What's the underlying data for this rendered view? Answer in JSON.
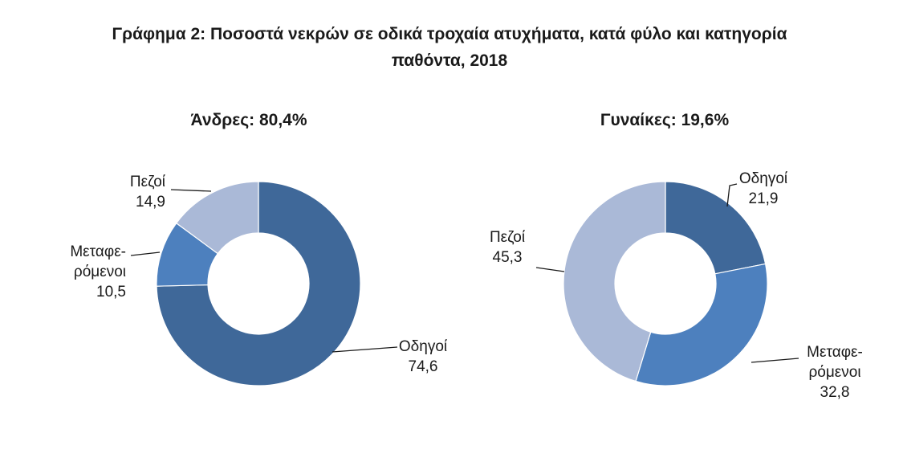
{
  "title": {
    "line1": "Γράφημα 2: Ποσοστά νεκρών σε οδικά τροχαία ατυχήματα, κατά φύλο και κατηγορία",
    "line2": "παθόντα, 2018"
  },
  "chart_data": [
    {
      "type": "donut",
      "title": "Άνδρες: 80,4%",
      "categories": [
        "Οδηγοί",
        "Μεταφερόμενοι",
        "Πεζοί"
      ],
      "values": [
        74.6,
        10.5,
        14.9
      ],
      "start": "top, clockwise",
      "labels": [
        {
          "lines": [
            "Οδηγοί",
            "74,6"
          ],
          "align": "middle"
        },
        {
          "lines": [
            "Μεταφε-",
            "ρόμενοι",
            "10,5"
          ],
          "align": "end"
        },
        {
          "lines": [
            "Πεζοί",
            "14,9"
          ],
          "align": "end"
        }
      ]
    },
    {
      "type": "donut",
      "title": "Γυναίκες: 19,6%",
      "categories": [
        "Οδηγοί",
        "Μεταφερόμενοι",
        "Πεζοί"
      ],
      "values": [
        21.9,
        32.8,
        45.3
      ],
      "start": "top, clockwise",
      "labels": [
        {
          "lines": [
            "Οδηγοί",
            "21,9"
          ],
          "align": "middle"
        },
        {
          "lines": [
            "Μεταφε-",
            "ρόμενοι",
            "32,8"
          ],
          "align": "middle"
        },
        {
          "lines": [
            "Πεζοί",
            "45,3"
          ],
          "align": "middle"
        }
      ]
    }
  ],
  "colors": {
    "drivers": "#3f6899",
    "passengers": "#4d80be",
    "pedestrians": "#aab9d7",
    "leader_line": "#1a1a1a"
  }
}
